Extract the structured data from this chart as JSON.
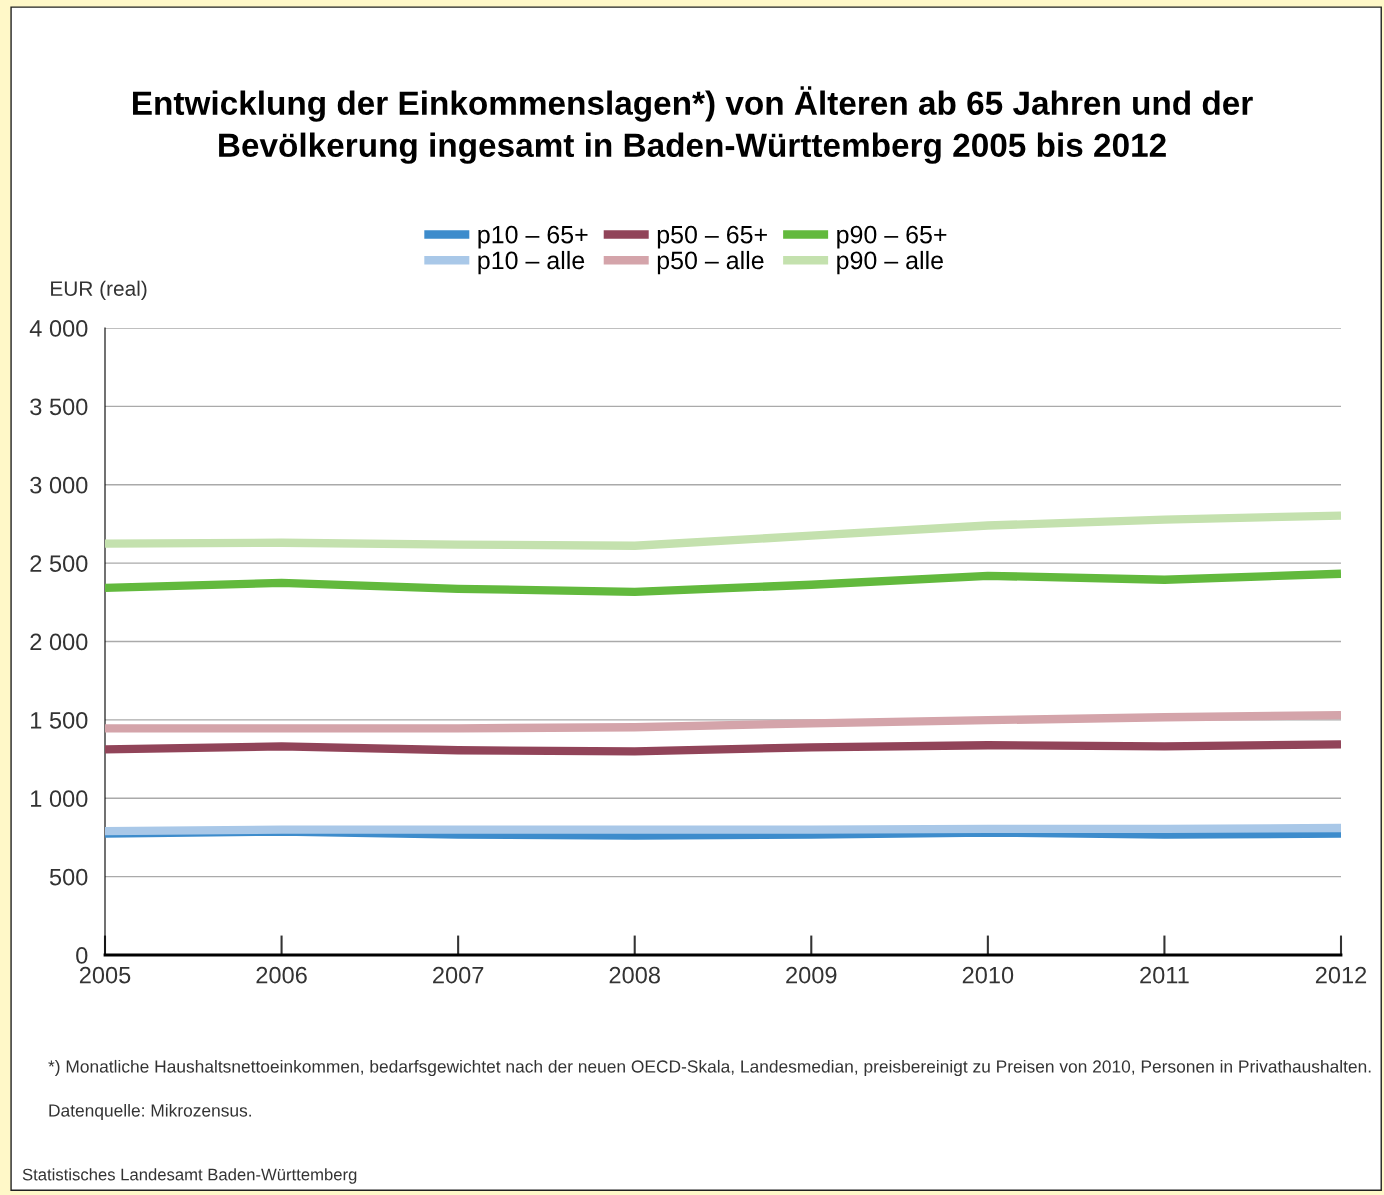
{
  "chart_data": {
    "type": "line",
    "title": "Entwicklung der Einkommenslagen*) von Älteren ab 65 Jahren und der\nBevölkerung ingesamt in Baden-Württemberg 2005 bis 2012",
    "ylabel": "EUR (real)",
    "x": [
      2005,
      2006,
      2007,
      2008,
      2009,
      2010,
      2011,
      2012
    ],
    "xlim": [
      2005,
      2012
    ],
    "xticks": [
      2005,
      2006,
      2007,
      2008,
      2009,
      2010,
      2011,
      2012
    ],
    "ylim": [
      0,
      4000
    ],
    "yticks": [
      {
        "value": 0,
        "label": "0"
      },
      {
        "value": 500,
        "label": "500"
      },
      {
        "value": 1000,
        "label": "1 000"
      },
      {
        "value": 1500,
        "label": "1 500"
      },
      {
        "value": 2000,
        "label": "2 000"
      },
      {
        "value": 2500,
        "label": "2 500"
      },
      {
        "value": 3000,
        "label": "3 000"
      },
      {
        "value": 3500,
        "label": "3 500"
      },
      {
        "value": 4000,
        "label": "4 000"
      }
    ],
    "grid": "y",
    "legend": "top",
    "line_style": "solid",
    "series": [
      {
        "name": "p10 – 65+",
        "color": "#3d8ccc",
        "values": [
          774,
          787,
          768,
          762,
          768,
          781,
          768,
          774
        ]
      },
      {
        "name": "p10 – alle",
        "color": "#a9c8e8",
        "values": [
          790,
          800,
          800,
          800,
          800,
          805,
          805,
          810
        ]
      },
      {
        "name": "p50 – 65+",
        "color": "#914459",
        "values": [
          1312,
          1331,
          1306,
          1299,
          1325,
          1338,
          1331,
          1344
        ]
      },
      {
        "name": "p50 – alle",
        "color": "#d4a4aa",
        "values": [
          1446,
          1446,
          1446,
          1453,
          1478,
          1498,
          1517,
          1530
        ]
      },
      {
        "name": "p90 – 65+",
        "color": "#62b93d",
        "values": [
          2342,
          2374,
          2336,
          2317,
          2362,
          2419,
          2394,
          2432
        ]
      },
      {
        "name": "p90 – alle",
        "color": "#c4e1ae",
        "values": [
          2624,
          2630,
          2618,
          2611,
          2675,
          2740,
          2778,
          2803
        ]
      }
    ],
    "annotations": [
      "*) Monatliche Haushaltsnettoeinkommen, bedarfsgewichtet nach der neuen OECD-Skala, Landesmedian, preisbereinigt zu Preisen von 2010, Personen in Privathaushalten.",
      "Datenquelle: Mikrozensus.",
      "Statistisches Landesamt Baden-Württemberg"
    ]
  }
}
